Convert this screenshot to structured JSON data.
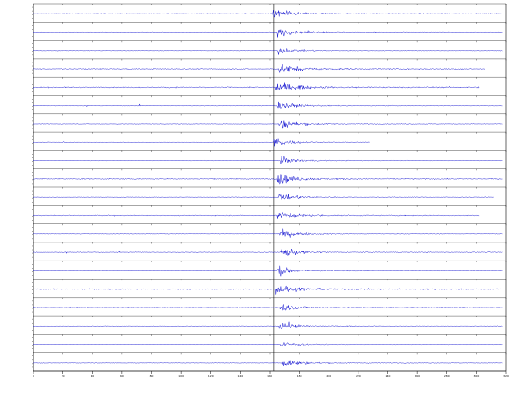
{
  "chart_data": {
    "type": "line",
    "title": "",
    "xlabel": "",
    "ylabel": "",
    "grid": false,
    "color": "#0000cc",
    "axis_color": "#000000",
    "xlim": [
      0,
      320
    ],
    "x_ticks": [
      0,
      20,
      40,
      60,
      80,
      100,
      120,
      140,
      160,
      180,
      200,
      220,
      240,
      260,
      280,
      300,
      320
    ],
    "x_tick_labels": [
      "0",
      "20",
      "40",
      "60",
      "80",
      "100",
      "120",
      "140",
      "160",
      "180",
      "200",
      "220",
      "240",
      "260",
      "280",
      "300",
      "320"
    ],
    "trace_count": 20,
    "traces": [
      {
        "label": "",
        "onset": 162,
        "amp": 1.0,
        "noise": 0.08,
        "end": 318
      },
      {
        "label": "",
        "onset": 165,
        "amp": 0.8,
        "noise": 0.1,
        "end": 318
      },
      {
        "label": "",
        "onset": 165,
        "amp": 0.6,
        "noise": 0.06,
        "end": 318
      },
      {
        "label": "",
        "onset": 166,
        "amp": 0.9,
        "noise": 0.14,
        "end": 306
      },
      {
        "label": "",
        "onset": 164,
        "amp": 1.0,
        "noise": 0.16,
        "end": 302
      },
      {
        "label": "",
        "onset": 165,
        "amp": 0.7,
        "noise": 0.08,
        "end": 318
      },
      {
        "label": "",
        "onset": 166,
        "amp": 0.9,
        "noise": 0.08,
        "end": 318
      },
      {
        "label": "",
        "onset": 163,
        "amp": 0.8,
        "noise": 0.05,
        "end": 228
      },
      {
        "label": "",
        "onset": 167,
        "amp": 0.6,
        "noise": 0.07,
        "end": 318
      },
      {
        "label": "",
        "onset": 165,
        "amp": 0.9,
        "noise": 0.14,
        "end": 318
      },
      {
        "label": "",
        "onset": 166,
        "amp": 0.7,
        "noise": 0.07,
        "end": 312
      },
      {
        "label": "",
        "onset": 165,
        "amp": 0.7,
        "noise": 0.13,
        "end": 302
      },
      {
        "label": "",
        "onset": 166,
        "amp": 0.8,
        "noise": 0.08,
        "end": 318
      },
      {
        "label": "",
        "onset": 167,
        "amp": 0.9,
        "noise": 0.09,
        "end": 318
      },
      {
        "label": "",
        "onset": 165,
        "amp": 0.8,
        "noise": 0.08,
        "end": 318
      },
      {
        "label": "",
        "onset": 164,
        "amp": 1.0,
        "noise": 0.16,
        "end": 318
      },
      {
        "label": "",
        "onset": 166,
        "amp": 0.8,
        "noise": 0.08,
        "end": 318
      },
      {
        "label": "",
        "onset": 166,
        "amp": 0.8,
        "noise": 0.07,
        "end": 318
      },
      {
        "label": "",
        "onset": 167,
        "amp": 0.5,
        "noise": 0.06,
        "end": 318
      },
      {
        "label": "",
        "onset": 168,
        "amp": 0.9,
        "noise": 0.08,
        "end": 318
      }
    ]
  }
}
